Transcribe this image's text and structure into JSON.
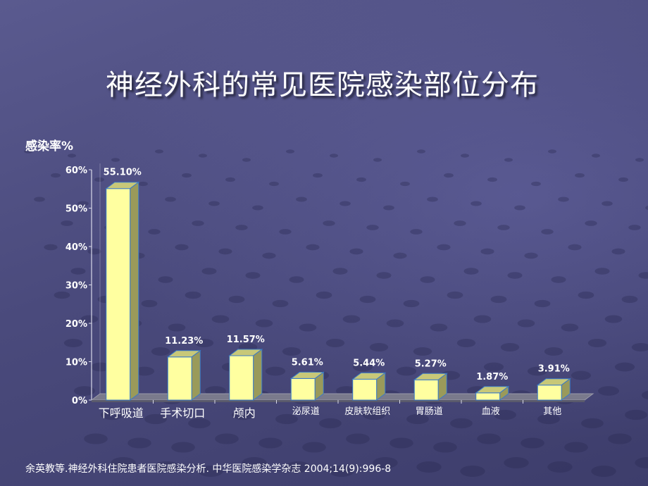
{
  "title": "神经外科的常见医院感染部位分布",
  "citation": "余英教等.神经外科住院患者医院感染分析. 中华医院感染学杂志 2004;14(9):996-8",
  "colors": {
    "bar": "#ffffa0",
    "bar_top": "#c8c878",
    "bar_side": "#9a9a5a",
    "bar_edge": "#3a7ac8",
    "floor": "#7a7a8c"
  },
  "chart_data": {
    "type": "bar",
    "title": "",
    "ylabel": "感染率%",
    "xlabel": "",
    "ylim": [
      0,
      60
    ],
    "yticks": [
      "0%",
      "10%",
      "20%",
      "30%",
      "40%",
      "50%",
      "60%"
    ],
    "categories": [
      "下呼吸道",
      "手术切口",
      "颅内",
      "泌尿道",
      "皮肤软组织",
      "胃肠道",
      "血液",
      "其他"
    ],
    "values": [
      55.1,
      11.23,
      11.57,
      5.61,
      5.44,
      5.27,
      1.87,
      3.91
    ],
    "data_labels": [
      "55.10%",
      "11.23%",
      "11.57%",
      "5.61%",
      "5.44%",
      "5.27%",
      "1.87%",
      "3.91%"
    ],
    "grid": false,
    "legend": "none"
  }
}
